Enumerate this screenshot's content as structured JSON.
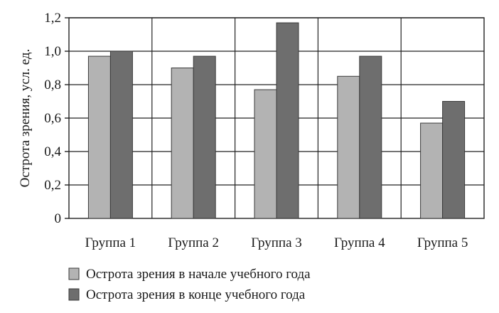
{
  "chart_data": {
    "type": "bar",
    "categories": [
      "Группа 1",
      "Группа 2",
      "Группа 3",
      "Группа 4",
      "Группа 5"
    ],
    "series": [
      {
        "name": "Острота зрения в начале учебного года",
        "values": [
          0.97,
          0.9,
          0.77,
          0.85,
          0.57
        ],
        "color": "#b3b3b3"
      },
      {
        "name": "Острота зрения в конце учебного года",
        "values": [
          1.0,
          0.97,
          1.17,
          0.97,
          0.7
        ],
        "color": "#6e6e6e"
      }
    ],
    "ylabel": "Острота зрения, усл. ед.",
    "ylim": [
      0,
      1.2
    ],
    "yticks": [
      "0",
      "0,2",
      "0,4",
      "0,6",
      "0,8",
      "1,0",
      "1,2"
    ],
    "grid": true,
    "legend_position": "bottom"
  }
}
